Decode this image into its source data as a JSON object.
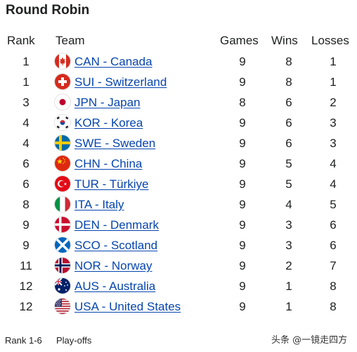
{
  "title": "Round Robin",
  "headers": {
    "rank": "Rank",
    "team": "Team",
    "games": "Games",
    "wins": "Wins",
    "losses": "Losses"
  },
  "rows": [
    {
      "rank": "1",
      "team": "CAN - Canada",
      "flag": "canada-flag",
      "games": "9",
      "wins": "8",
      "losses": "1"
    },
    {
      "rank": "1",
      "team": "SUI - Switzerland",
      "flag": "switzerland-flag",
      "games": "9",
      "wins": "8",
      "losses": "1"
    },
    {
      "rank": "3",
      "team": "JPN - Japan",
      "flag": "japan-flag",
      "games": "8",
      "wins": "6",
      "losses": "2"
    },
    {
      "rank": "4",
      "team": "KOR - Korea",
      "flag": "korea-flag",
      "games": "9",
      "wins": "6",
      "losses": "3"
    },
    {
      "rank": "4",
      "team": "SWE - Sweden",
      "flag": "sweden-flag",
      "games": "9",
      "wins": "6",
      "losses": "3"
    },
    {
      "rank": "6",
      "team": "CHN - China",
      "flag": "china-flag",
      "games": "9",
      "wins": "5",
      "losses": "4"
    },
    {
      "rank": "6",
      "team": "TUR - Türkiye",
      "flag": "turkiye-flag",
      "games": "9",
      "wins": "5",
      "losses": "4"
    },
    {
      "rank": "8",
      "team": "ITA - Italy",
      "flag": "italy-flag",
      "games": "9",
      "wins": "4",
      "losses": "5"
    },
    {
      "rank": "9",
      "team": "DEN - Denmark",
      "flag": "denmark-flag",
      "games": "9",
      "wins": "3",
      "losses": "6"
    },
    {
      "rank": "9",
      "team": "SCO - Scotland",
      "flag": "scotland-flag",
      "games": "9",
      "wins": "3",
      "losses": "6"
    },
    {
      "rank": "11",
      "team": "NOR - Norway",
      "flag": "norway-flag",
      "games": "9",
      "wins": "2",
      "losses": "7"
    },
    {
      "rank": "12",
      "team": "AUS - Australia",
      "flag": "australia-flag",
      "games": "9",
      "wins": "1",
      "losses": "8"
    },
    {
      "rank": "12",
      "team": "USA - United States",
      "flag": "usa-flag",
      "games": "9",
      "wins": "1",
      "losses": "8"
    }
  ],
  "footer": {
    "rank_range": "Rank 1-6",
    "playoffs": "Play-offs"
  },
  "watermark": "头条 @一镜走四方",
  "colors": {
    "link": "#0645ad",
    "text": "#202122"
  }
}
